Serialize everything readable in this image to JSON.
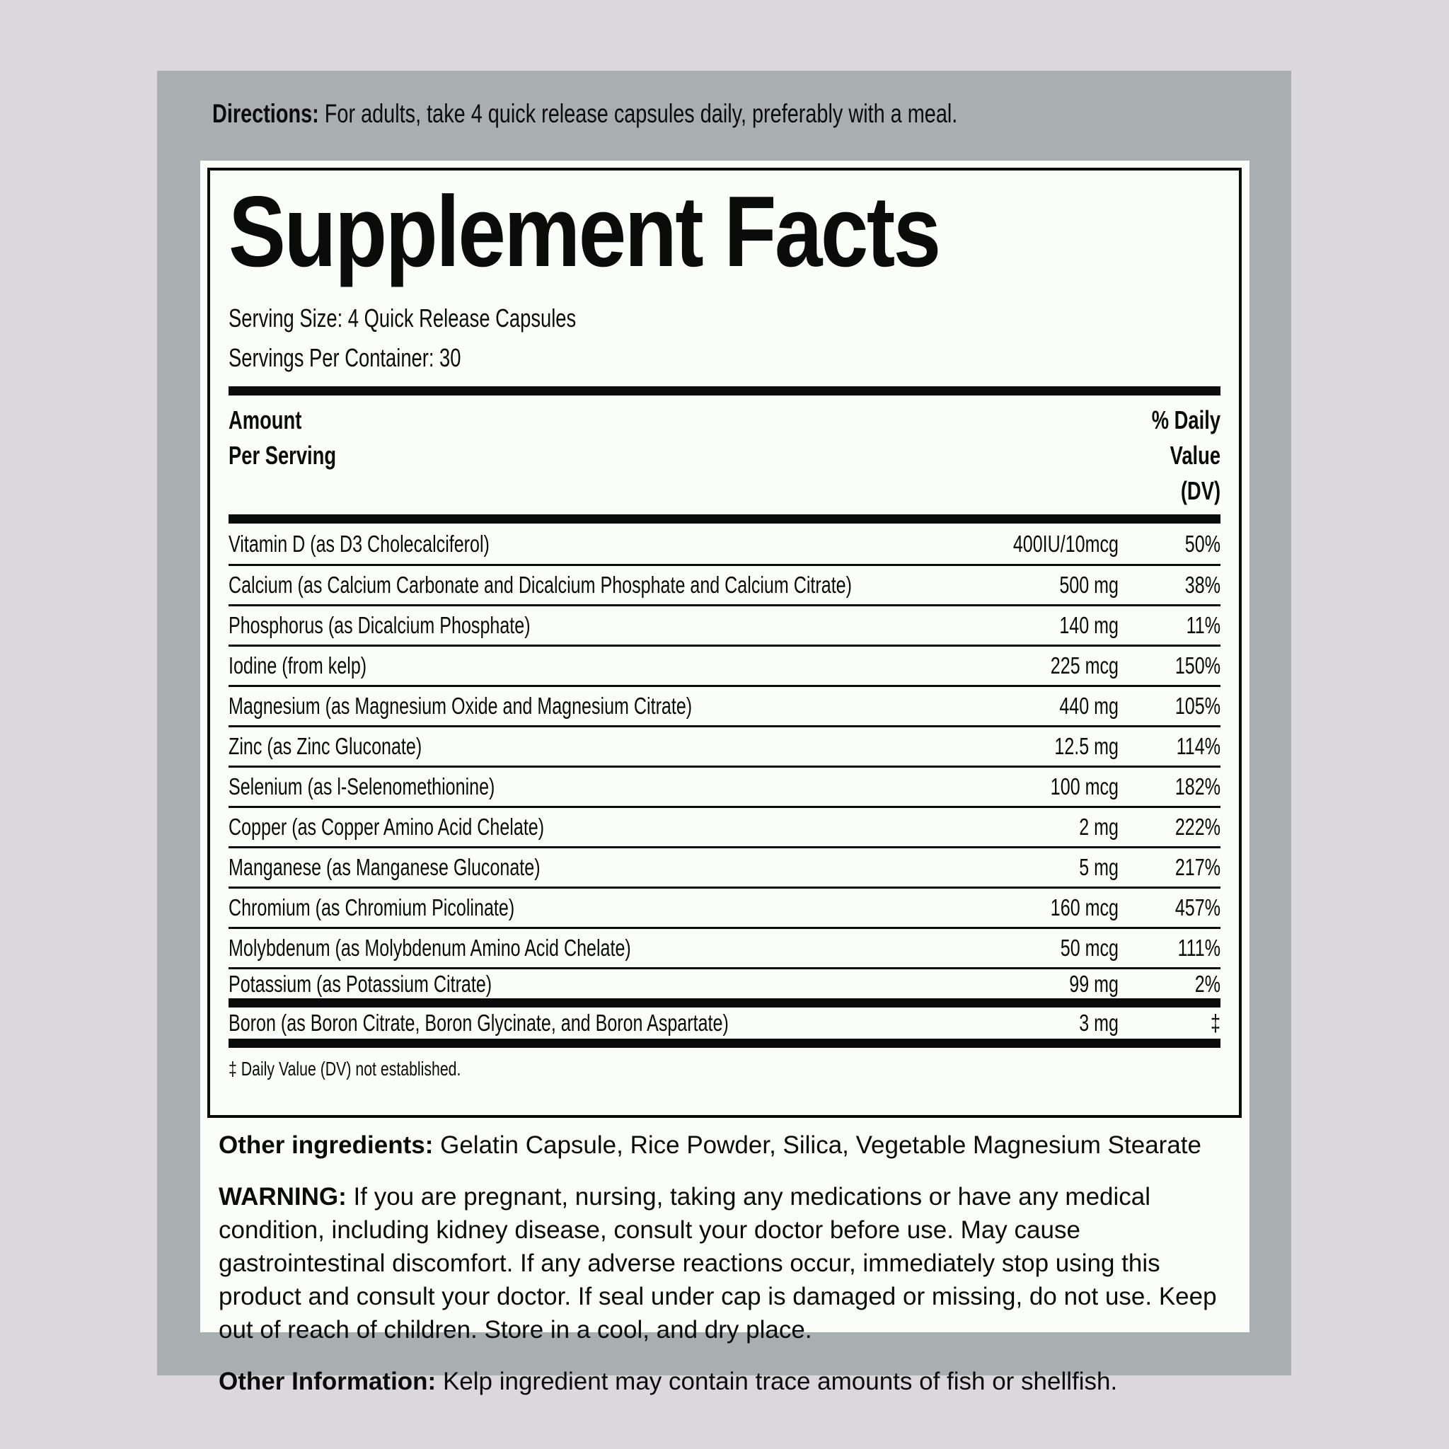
{
  "colors": {
    "page_bg": "#dad8db",
    "panel_bg": "#a9aeb0",
    "label_bg": "#fbfdf9",
    "ink": "#0b0b0b"
  },
  "directions": {
    "label": "Directions:",
    "text": "For adults, take 4 quick release capsules daily, preferably with a meal."
  },
  "facts": {
    "title": "Supplement Facts",
    "serving_size": "Serving Size: 4 Quick Release Capsules",
    "servings_per_container": "Servings Per Container: 30",
    "header": {
      "amount_line1": "Amount",
      "amount_line2": "Per Serving",
      "dv_line1": "% Daily",
      "dv_line2": "Value",
      "dv_line3": "(DV)"
    },
    "rows": [
      {
        "name": "Vitamin D (as D3 Cholecalciferol)",
        "amount": "400IU/10mcg",
        "dv": "50%"
      },
      {
        "name": "Calcium (as Calcium Carbonate and Dicalcium Phosphate and Calcium Citrate)",
        "amount": "500 mg",
        "dv": "38%"
      },
      {
        "name": "Phosphorus (as Dicalcium Phosphate)",
        "amount": "140 mg",
        "dv": "11%"
      },
      {
        "name": "Iodine (from kelp)",
        "amount": "225 mcg",
        "dv": "150%"
      },
      {
        "name": "Magnesium (as Magnesium Oxide and Magnesium Citrate)",
        "amount": "440 mg",
        "dv": "105%"
      },
      {
        "name": "Zinc (as Zinc Gluconate)",
        "amount": "12.5 mg",
        "dv": "114%"
      },
      {
        "name": "Selenium (as l-Selenomethionine)",
        "amount": "100 mcg",
        "dv": "182%"
      },
      {
        "name": "Copper (as Copper Amino Acid Chelate)",
        "amount": "2 mg",
        "dv": "222%"
      },
      {
        "name": "Manganese (as Manganese Gluconate)",
        "amount": "5 mg",
        "dv": "217%"
      },
      {
        "name": "Chromium (as Chromium Picolinate)",
        "amount": "160 mcg",
        "dv": "457%"
      },
      {
        "name": "Molybdenum (as Molybdenum Amino Acid Chelate)",
        "amount": "50 mcg",
        "dv": "111%"
      },
      {
        "name": "Potassium (as Potassium Citrate)",
        "amount": "99 mg",
        "dv": "2%"
      },
      {
        "name": "Boron (as Boron Citrate, Boron Glycinate, and Boron Aspartate)",
        "amount": "3 mg",
        "dv": "‡"
      }
    ],
    "footnote": "‡ Daily Value (DV) not established."
  },
  "other_ingredients": {
    "label": "Other ingredients:",
    "text": "Gelatin Capsule, Rice Powder, Silica, Vegetable Magnesium Stearate"
  },
  "warning": {
    "label": "WARNING:",
    "text": "If you are pregnant, nursing, taking any medications or have any medical condition, including kidney disease, consult your doctor before use. May cause gastrointestinal discomfort. If any adverse reactions occur, immediately stop using this product and consult your doctor. If seal under cap is damaged or missing, do not use. Keep out of reach of children. Store in a cool, and dry place."
  },
  "other_information": {
    "label": "Other Information:",
    "text": "Kelp ingredient may contain trace amounts of fish or shellfish."
  }
}
